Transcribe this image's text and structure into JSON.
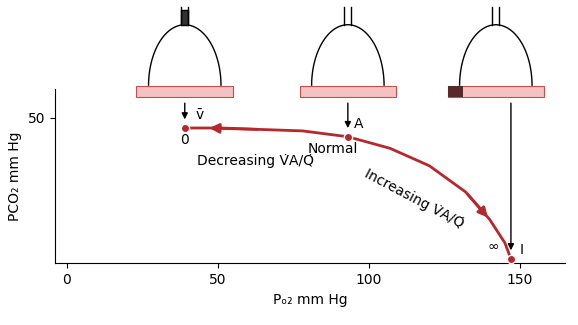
{
  "chart_data": {
    "type": "line",
    "xlabel": "Pₒ₂ mm Hg",
    "ylabel": "PCO₂ mm Hg",
    "x": [
      39,
      51,
      64,
      78,
      93,
      107,
      120,
      132,
      140,
      145,
      147
    ],
    "values": [
      46.5,
      46.5,
      46,
      45.5,
      43.5,
      39.5,
      33.5,
      24.5,
      15,
      7,
      1.5
    ],
    "color": "#b5282e",
    "marker": "o",
    "xlim": [
      -4,
      165
    ],
    "ylim": [
      0,
      60
    ],
    "xticks": [
      0,
      50,
      100,
      150
    ],
    "yticks": [
      50
    ],
    "points": [
      {
        "x": 39,
        "y": 46.5,
        "label": "v̄",
        "ratio_label": "0"
      },
      {
        "x": 93,
        "y": 43.5,
        "label": "A",
        "ratio_label": "Normal"
      },
      {
        "x": 147,
        "y": 1.5,
        "label": "I",
        "ratio_label": "∞"
      }
    ],
    "annotations": [
      "Decreasing V̇A/Q̇",
      "Increasing V̇A/Q̇"
    ]
  }
}
